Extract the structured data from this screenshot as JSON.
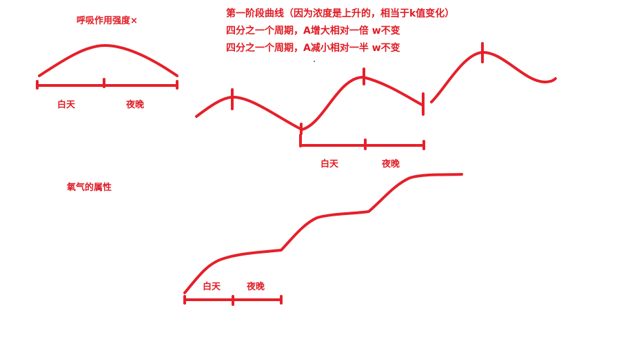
{
  "labels": {
    "respiration_title": "呼吸作用强度×",
    "oxygen_title": "氧气的属性",
    "day": "白天",
    "night": "夜晚"
  },
  "notes": [
    "第一阶段曲线（因为浓度是上升的，相当于k值变化）",
    "四分之一个周期，A增大相对一倍 w不变",
    "四分之一个周期，A减小相对一半 w不变"
  ],
  "colors": {
    "ink": "#e5202a"
  }
}
